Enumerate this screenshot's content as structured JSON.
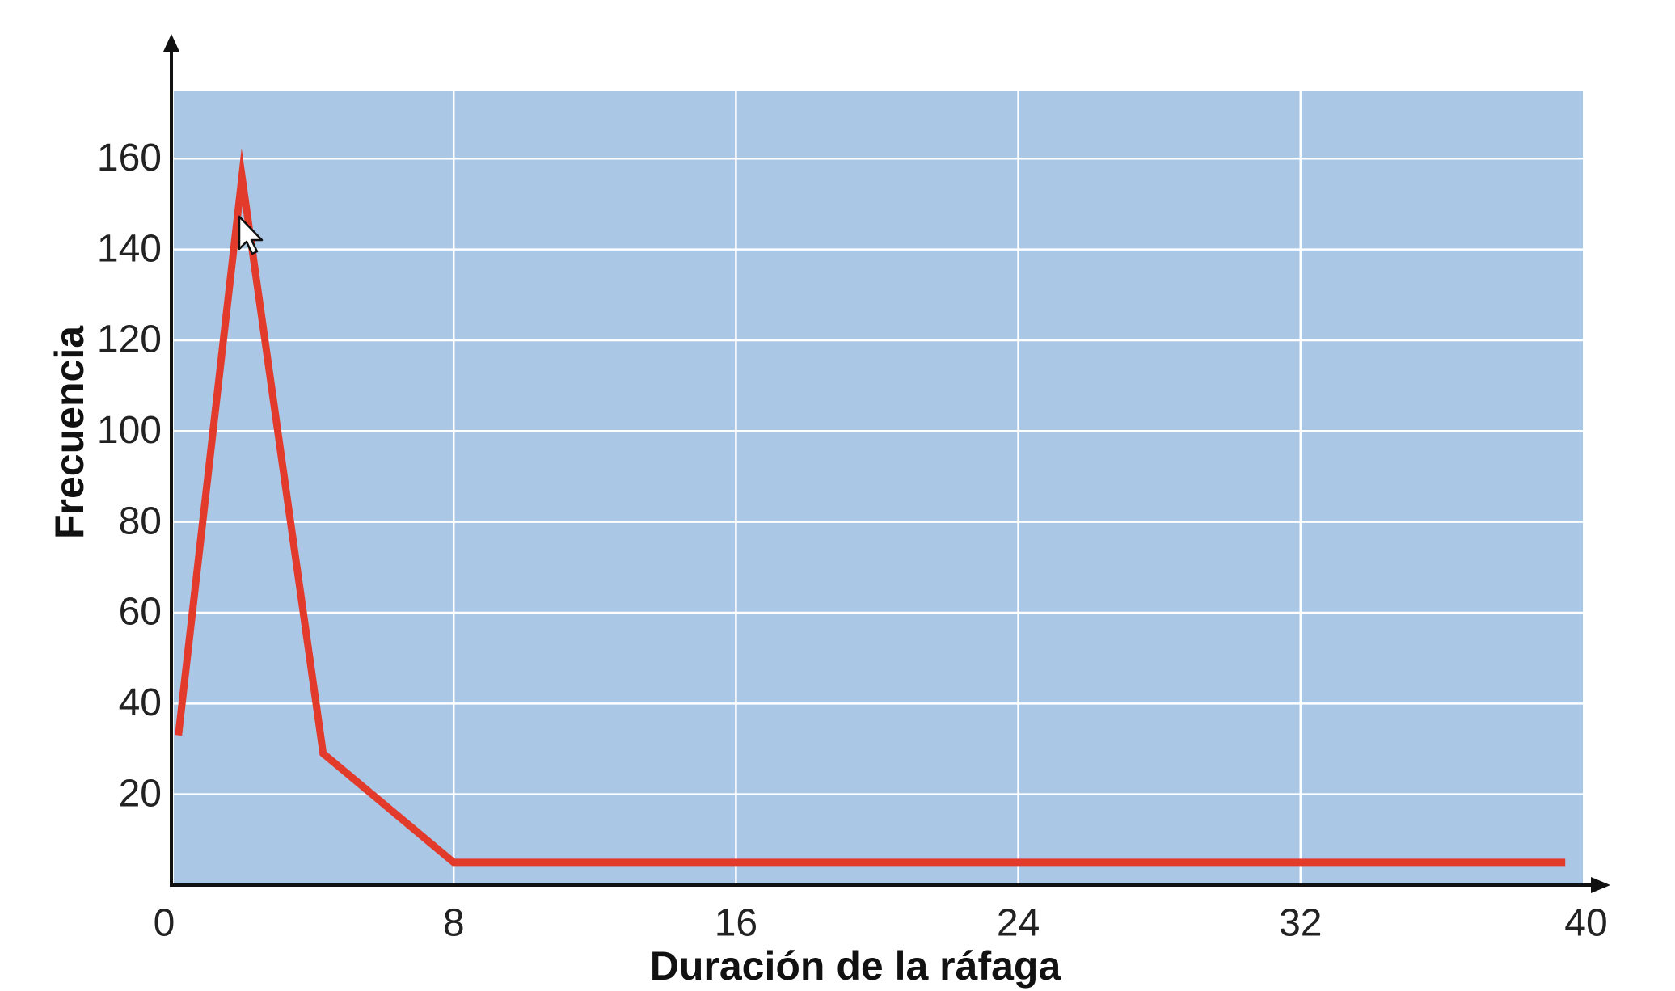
{
  "chart_data": {
    "type": "line",
    "title": "",
    "xlabel": "Duración de la ráfaga",
    "ylabel": "Frecuencia",
    "xlim": [
      0,
      40
    ],
    "ylim": [
      0,
      175
    ],
    "x_ticks": [
      0,
      8,
      16,
      24,
      32,
      40
    ],
    "y_ticks": [
      20,
      40,
      60,
      80,
      100,
      120,
      140,
      160
    ],
    "grid": true,
    "legend": "none",
    "series": [
      {
        "x": [
          0.2,
          2,
          4.3,
          8,
          39.5
        ],
        "y": [
          33,
          156,
          29,
          5,
          5
        ]
      }
    ],
    "colors": {
      "plot_background": "#abc7e6",
      "grid": "#ffffff",
      "line": "#e23b2c",
      "axis": "#111111"
    }
  }
}
